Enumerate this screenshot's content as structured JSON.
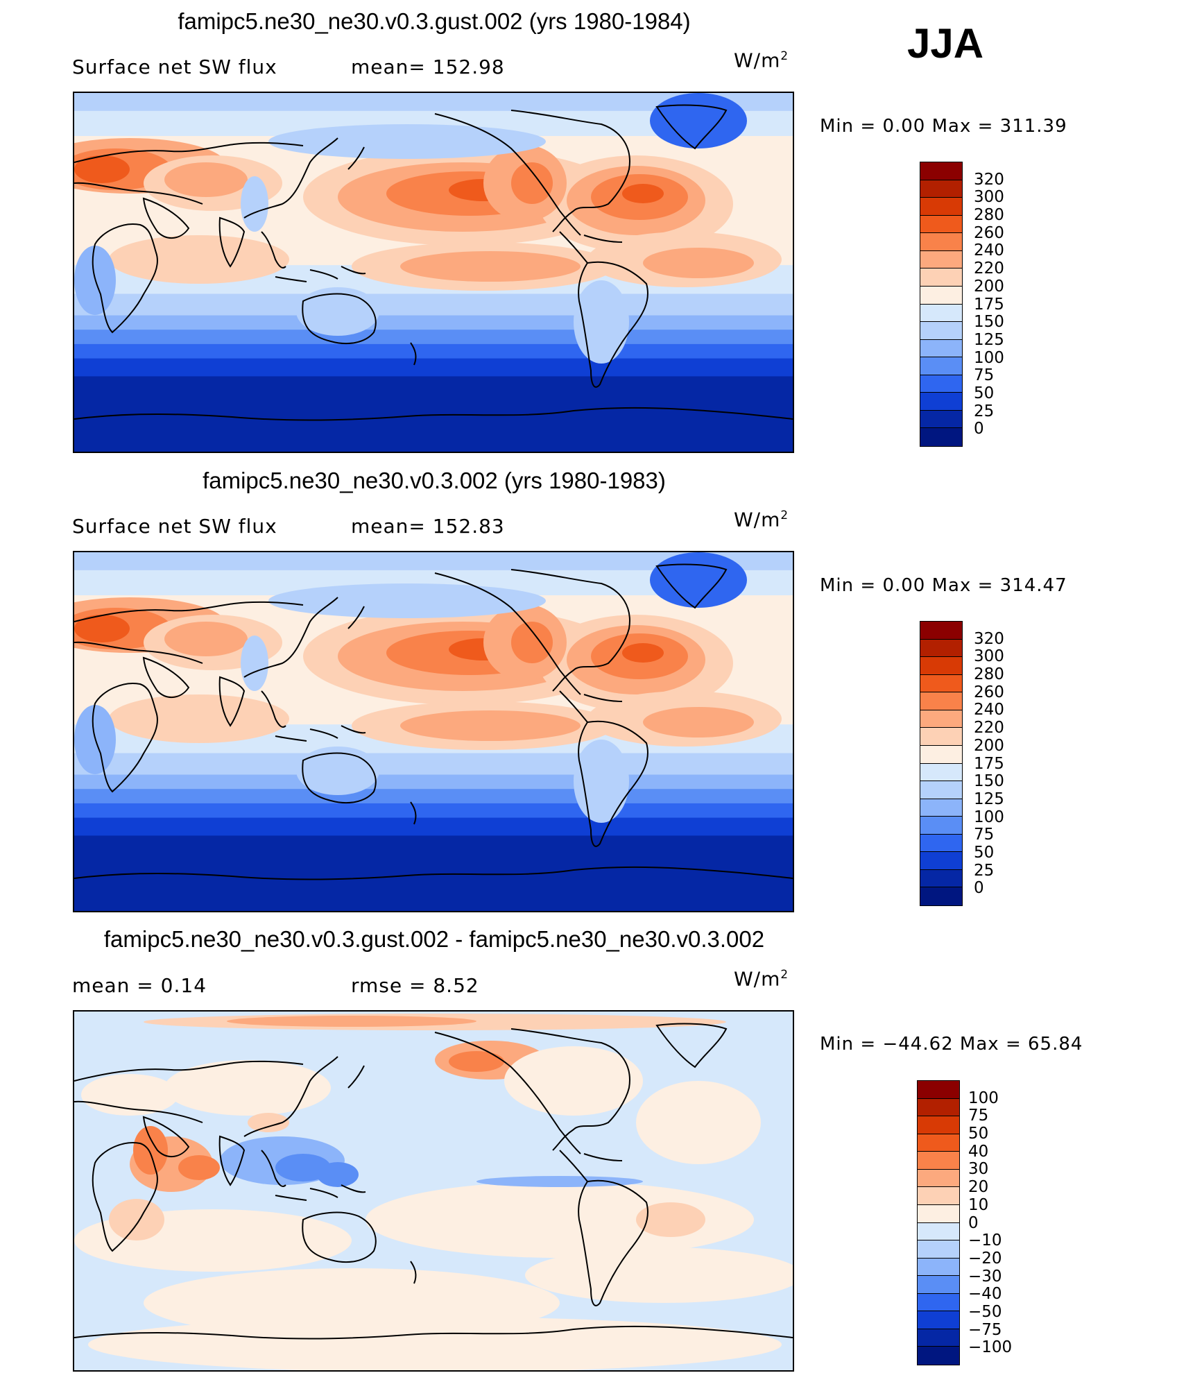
{
  "season": "JJA",
  "panels": [
    {
      "title": "famipc5.ne30_ne30.v0.3.gust.002 (yrs 1980-1984)",
      "left_label": "Surface net SW flux",
      "center_label": "mean= 152.98",
      "units": "W/m",
      "units_sup": "2",
      "min_max": "Min =     0.00 Max = 311.39",
      "colorbar_labels": [
        "320",
        "300",
        "280",
        "260",
        "240",
        "220",
        "200",
        "175",
        "150",
        "125",
        "100",
        "75",
        "50",
        "25",
        "0"
      ],
      "colors": [
        "#8b0000",
        "#b22000",
        "#d83a05",
        "#ef5a1c",
        "#f9824a",
        "#fca97e",
        "#fdd1b5",
        "#fdefe2",
        "#d6e8fb",
        "#b5d1fb",
        "#8cb4fa",
        "#5a8ef5",
        "#2f66f0",
        "#0f3fd4",
        "#0527a5",
        "#001680"
      ],
      "field": "sw"
    },
    {
      "title": "famipc5.ne30_ne30.v0.3.002 (yrs 1980-1983)",
      "left_label": "Surface net SW flux",
      "center_label": "mean= 152.83",
      "units": "W/m",
      "units_sup": "2",
      "min_max": "Min =     0.00 Max = 314.47",
      "colorbar_labels": [
        "320",
        "300",
        "280",
        "260",
        "240",
        "220",
        "200",
        "175",
        "150",
        "125",
        "100",
        "75",
        "50",
        "25",
        "0"
      ],
      "colors": [
        "#8b0000",
        "#b22000",
        "#d83a05",
        "#ef5a1c",
        "#f9824a",
        "#fca97e",
        "#fdd1b5",
        "#fdefe2",
        "#d6e8fb",
        "#b5d1fb",
        "#8cb4fa",
        "#5a8ef5",
        "#2f66f0",
        "#0f3fd4",
        "#0527a5",
        "#001680"
      ],
      "field": "sw"
    },
    {
      "title": "famipc5.ne30_ne30.v0.3.gust.002 - famipc5.ne30_ne30.v0.3.002",
      "left_label": "mean =    0.14",
      "center_label": "rmse =    8.52",
      "units": "W/m",
      "units_sup": "2",
      "min_max": "Min = −44.62 Max =   65.84",
      "colorbar_labels": [
        "100",
        "75",
        "50",
        "40",
        "30",
        "20",
        "10",
        "0",
        "−10",
        "−20",
        "−30",
        "−40",
        "−50",
        "−75",
        "−100"
      ],
      "colors": [
        "#8b0000",
        "#b22000",
        "#d83a05",
        "#ef5a1c",
        "#f9824a",
        "#fca97e",
        "#fdd1b5",
        "#fdefe2",
        "#d6e8fb",
        "#b5d1fb",
        "#8cb4fa",
        "#5a8ef5",
        "#2f66f0",
        "#0f3fd4",
        "#0527a5",
        "#001680"
      ],
      "field": "diff"
    }
  ]
}
